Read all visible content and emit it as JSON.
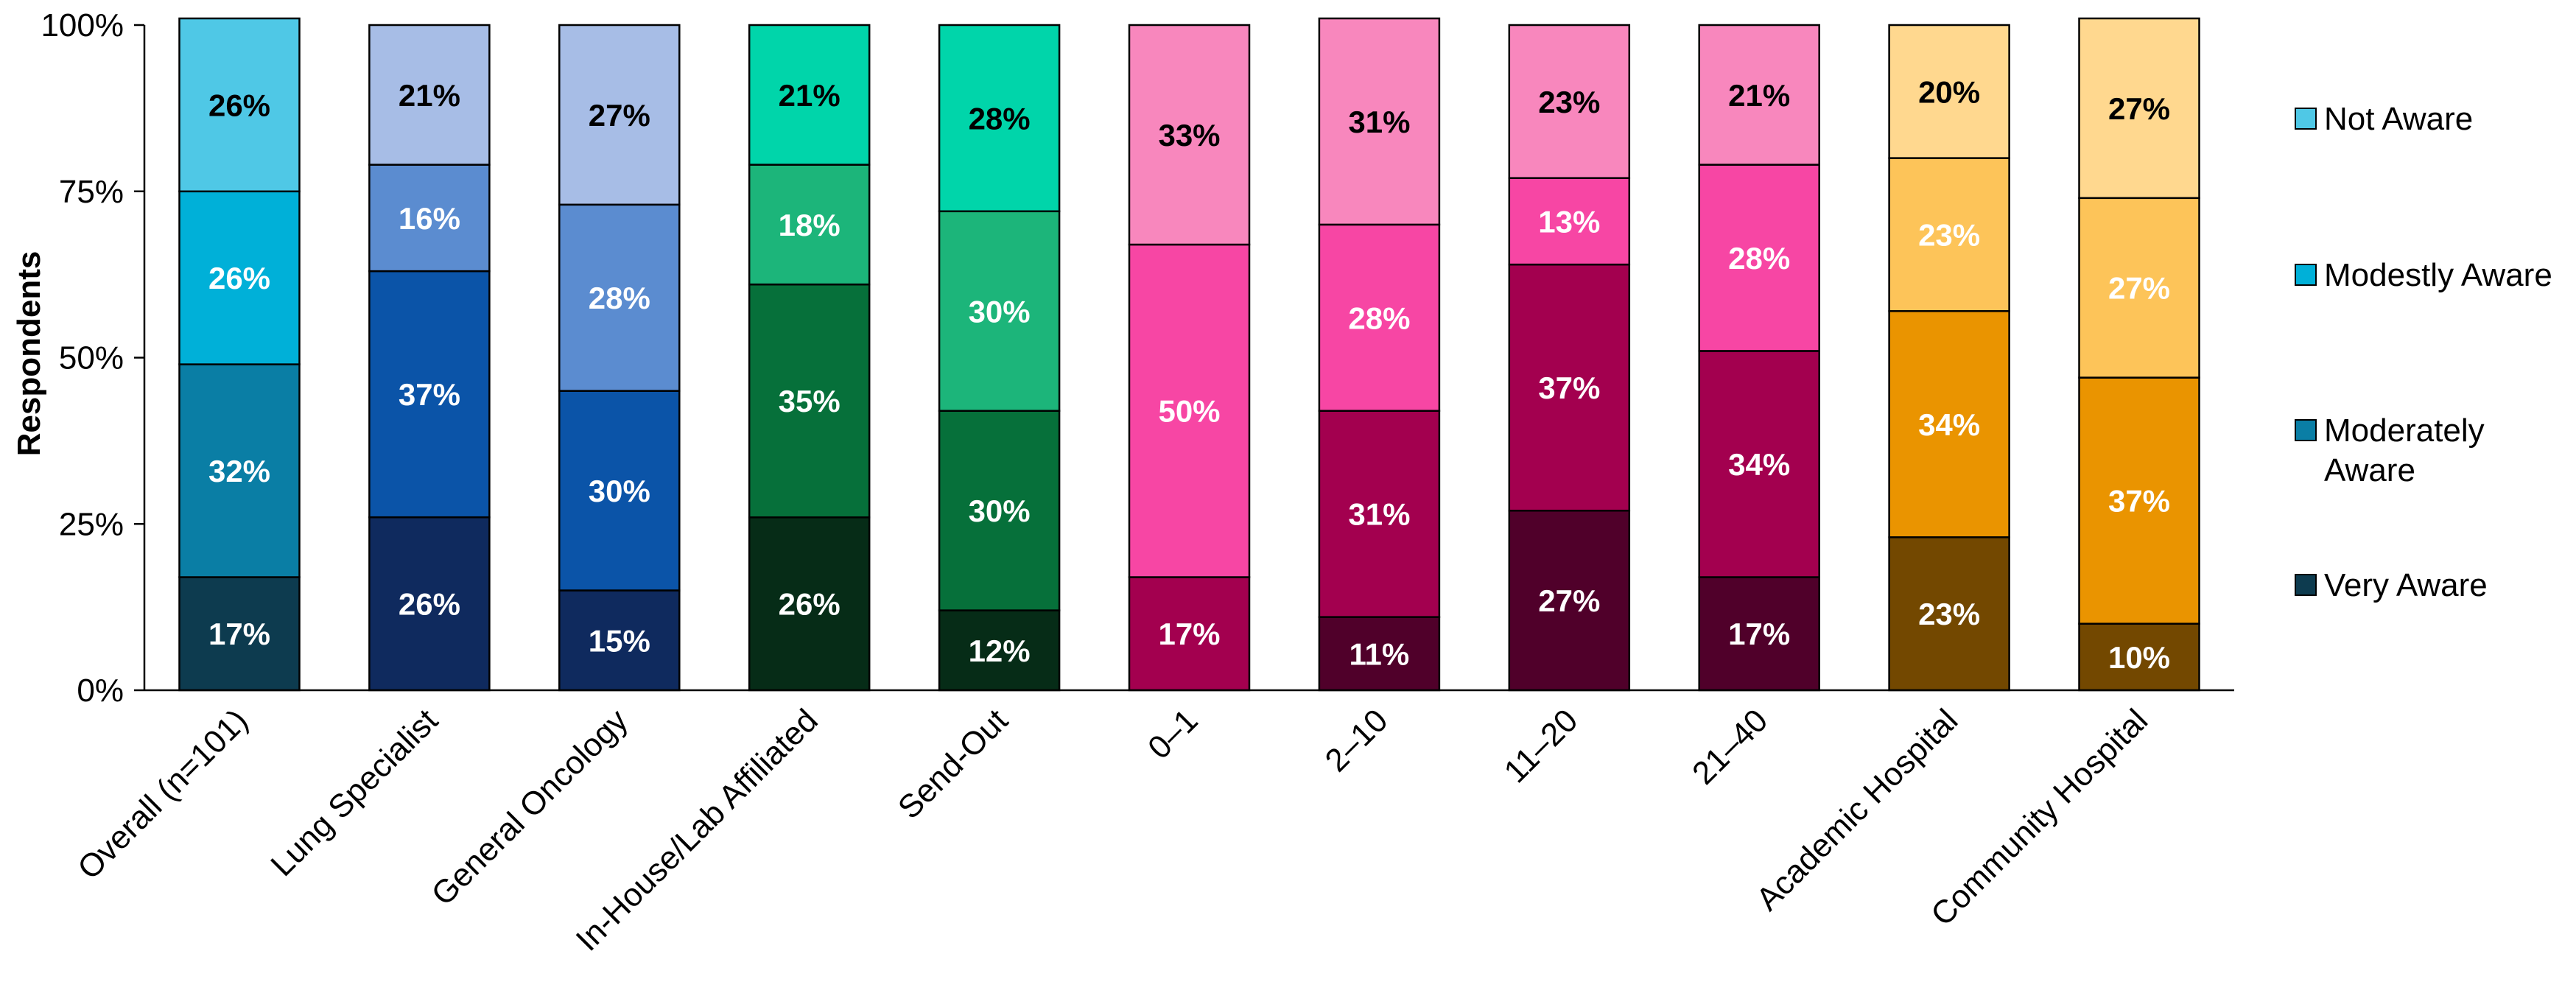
{
  "chart_data": {
    "type": "bar",
    "stacked": true,
    "ylabel": "Respondents",
    "xlabel": "",
    "ylim": [
      0,
      100
    ],
    "yticks": [
      "0%",
      "25%",
      "50%",
      "75%",
      "100%"
    ],
    "categories": [
      "Overall (n=101)",
      "Lung Specialist",
      "General Oncology",
      "In-House/Lab Affiliated",
      "Send-Out",
      "0–1",
      "2–10",
      "11–20",
      "21–40",
      "Academic Hospital",
      "Community Hospital"
    ],
    "series": [
      {
        "name": "Very Aware",
        "values": [
          17,
          26,
          15,
          26,
          12,
          17,
          11,
          27,
          17,
          23,
          10
        ]
      },
      {
        "name": "Moderately Aware",
        "values": [
          32,
          37,
          30,
          35,
          30,
          50,
          31,
          37,
          34,
          34,
          37
        ]
      },
      {
        "name": "Modestly Aware",
        "values": [
          26,
          16,
          28,
          18,
          30,
          0,
          28,
          13,
          28,
          23,
          27
        ]
      },
      {
        "name": "Not Aware",
        "values": [
          26,
          21,
          27,
          21,
          28,
          33,
          31,
          23,
          21,
          20,
          27
        ]
      }
    ],
    "data_labels": [
      [
        "17%",
        "32%",
        "26%",
        "26%"
      ],
      [
        "26%",
        "37%",
        "16%",
        "21%"
      ],
      [
        "15%",
        "30%",
        "28%",
        "27%"
      ],
      [
        "26%",
        "35%",
        "18%",
        "21%"
      ],
      [
        "12%",
        "30%",
        "30%",
        "28%"
      ],
      [
        "17%",
        "50%",
        "",
        "33%"
      ],
      [
        "11%",
        "31%",
        "28%",
        "31%"
      ],
      [
        "27%",
        "37%",
        "13%",
        "23%"
      ],
      [
        "17%",
        "34%",
        "28%",
        "21%"
      ],
      [
        "23%",
        "34%",
        "23%",
        "20%"
      ],
      [
        "10%",
        "37%",
        "27%",
        "27%"
      ]
    ],
    "colors": [
      [
        "#0d3b4f",
        "#0a7ea5",
        "#00b0d8",
        "#4fc8e6"
      ],
      [
        "#0f2a5e",
        "#0b54a8",
        "#5b8cd0",
        "#a7bde6"
      ],
      [
        "#0f2a5e",
        "#0b54a8",
        "#5b8cd0",
        "#a7bde6"
      ],
      [
        "#062c17",
        "#06703a",
        "#1cb57a",
        "#00d5aa"
      ],
      [
        "#062c17",
        "#06703a",
        "#1cb57a",
        "#00d5aa"
      ],
      [
        "#a3004f",
        "#f746a4",
        "#f746a4",
        "#f887bd"
      ],
      [
        "#50002a",
        "#a3004f",
        "#f746a4",
        "#f887bd"
      ],
      [
        "#50002a",
        "#a3004f",
        "#f746a4",
        "#f887bd"
      ],
      [
        "#50002a",
        "#a3004f",
        "#f746a4",
        "#f887bd"
      ],
      [
        "#734800",
        "#ea9400",
        "#fdc459",
        "#ffd88f"
      ],
      [
        "#734800",
        "#ea9400",
        "#fdc459",
        "#ffd88f"
      ]
    ],
    "label_colors": [
      [
        "#ffffff",
        "#ffffff",
        "#ffffff",
        "#000000"
      ],
      [
        "#ffffff",
        "#ffffff",
        "#ffffff",
        "#000000"
      ],
      [
        "#ffffff",
        "#ffffff",
        "#ffffff",
        "#000000"
      ],
      [
        "#ffffff",
        "#ffffff",
        "#ffffff",
        "#000000"
      ],
      [
        "#ffffff",
        "#ffffff",
        "#ffffff",
        "#000000"
      ],
      [
        "#ffffff",
        "#ffffff",
        "#ffffff",
        "#000000"
      ],
      [
        "#ffffff",
        "#ffffff",
        "#ffffff",
        "#000000"
      ],
      [
        "#ffffff",
        "#ffffff",
        "#ffffff",
        "#000000"
      ],
      [
        "#ffffff",
        "#ffffff",
        "#ffffff",
        "#000000"
      ],
      [
        "#ffffff",
        "#ffffff",
        "#ffffff",
        "#000000"
      ],
      [
        "#ffffff",
        "#ffffff",
        "#ffffff",
        "#000000"
      ]
    ],
    "legend": {
      "position": "right",
      "entries": [
        {
          "label": "Not Aware",
          "color": "#4fc8e6"
        },
        {
          "label": "Modestly Aware",
          "color": "#00b0d8"
        },
        {
          "label": "Moderately Aware",
          "lines": [
            "Moderately",
            "Aware"
          ],
          "color": "#0a7ea5"
        },
        {
          "label": "Very Aware",
          "color": "#0d3b4f"
        }
      ]
    },
    "grid": false
  }
}
